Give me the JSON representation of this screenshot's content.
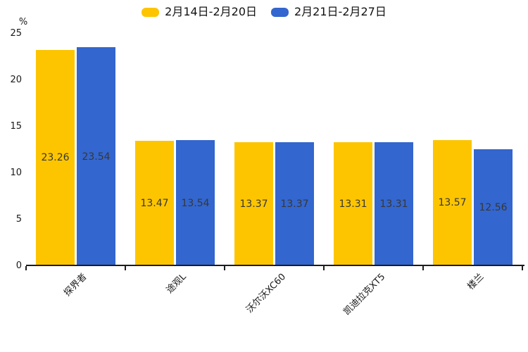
{
  "chart_data": {
    "type": "bar",
    "title": "",
    "ylabel": "%",
    "xlabel": "",
    "categories": [
      "探界者",
      "途观L",
      "沃尔沃XC60",
      "凯迪拉克XT5",
      "楼兰"
    ],
    "series": [
      {
        "name": "2月14日-2月20日",
        "color": "#FDC500",
        "values": [
          23.26,
          13.47,
          13.37,
          13.31,
          13.57
        ]
      },
      {
        "name": "2月21日-2月27日",
        "color": "#3366CE",
        "values": [
          23.54,
          13.54,
          13.37,
          13.31,
          12.56
        ]
      }
    ],
    "ylim": [
      0,
      25
    ],
    "yticks": [
      0,
      5,
      10,
      15,
      20,
      25
    ],
    "grid": false,
    "legend_position": "top-center",
    "value_labels": "two-decimals-centered-inside-bars",
    "x_tick_rotation_deg": 45,
    "axis_color": "#1c1c1c",
    "value_label_color": "#373737",
    "background_color": "#ffffff"
  }
}
